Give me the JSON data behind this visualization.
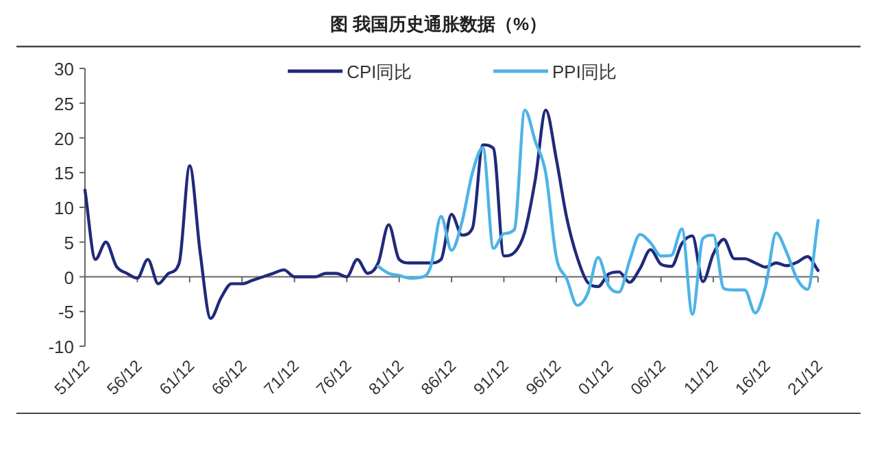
{
  "chart_data": {
    "type": "line",
    "title": "图  我国历史通胀数据（%）",
    "ylim": [
      -10,
      30
    ],
    "yticks": [
      -10,
      -5,
      0,
      5,
      10,
      15,
      20,
      25,
      30
    ],
    "categories": [
      "51/12",
      null,
      null,
      null,
      null,
      "56/12",
      null,
      null,
      null,
      null,
      "61/12",
      null,
      null,
      null,
      null,
      "66/12",
      null,
      null,
      null,
      null,
      "71/12",
      null,
      null,
      null,
      null,
      "76/12",
      null,
      null,
      null,
      null,
      "81/12",
      null,
      null,
      null,
      null,
      "86/12",
      null,
      null,
      null,
      null,
      "91/12",
      null,
      null,
      null,
      null,
      "96/12",
      null,
      null,
      null,
      null,
      "01/12",
      null,
      null,
      null,
      null,
      "06/12",
      null,
      null,
      null,
      null,
      "11/12",
      null,
      null,
      null,
      null,
      "16/12",
      null,
      null,
      null,
      null,
      "21/12"
    ],
    "legend": "top",
    "line_style": "solid",
    "marker": "none",
    "series": [
      {
        "name": "CPI同比",
        "color": "#1f2a7a",
        "values": [
          12.5,
          2.5,
          5,
          1.5,
          0.5,
          -0.2,
          2.5,
          -1,
          0.5,
          2,
          16,
          3.5,
          -6,
          -3,
          -1,
          -1,
          -0.5,
          0,
          0.5,
          1,
          0,
          0,
          0,
          0.5,
          0.5,
          0,
          2.5,
          0.5,
          2,
          7.5,
          2.5,
          2,
          2,
          2,
          2.5,
          9,
          6,
          7,
          19,
          18.5,
          3,
          3.5,
          6.5,
          14,
          24,
          17,
          8.5,
          2.8,
          -0.8,
          -1.4,
          0.4,
          0.7,
          -0.8,
          1.2,
          3.9,
          1.8,
          1.5,
          4.8,
          5.9,
          -0.7,
          3.3,
          5.4,
          2.6,
          2.6,
          2,
          1.4,
          2,
          1.6,
          2.1,
          2.9,
          0.9
        ]
      },
      {
        "name": "PPI同比",
        "color": "#4db3e6",
        "values": [
          null,
          null,
          null,
          null,
          null,
          null,
          null,
          null,
          null,
          null,
          null,
          null,
          null,
          null,
          null,
          null,
          null,
          null,
          null,
          null,
          null,
          null,
          null,
          null,
          null,
          null,
          null,
          null,
          1.5,
          0.5,
          0.2,
          -0.2,
          -0.1,
          1.4,
          8.7,
          3.8,
          7.9,
          15,
          18.6,
          4.1,
          6.2,
          6.8,
          24,
          19.5,
          14.9,
          2.9,
          -0.3,
          -4.1,
          -2.4,
          2.8,
          -1.3,
          -2.2,
          2.3,
          6.1,
          4.9,
          3,
          3.1,
          6.9,
          -5.4,
          5.5,
          6,
          -1.7,
          -1.9,
          -1.9,
          -5.2,
          -1.3,
          6.3,
          3.5,
          -0.3,
          -1.8,
          8.1
        ]
      }
    ]
  }
}
